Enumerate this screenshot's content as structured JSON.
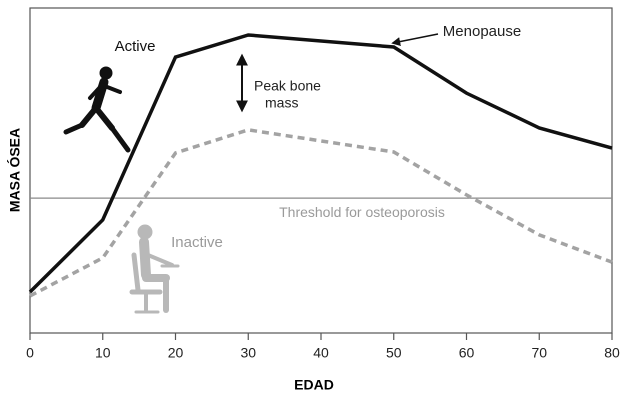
{
  "chart_data": {
    "type": "line",
    "x_label": "EDAD",
    "y_label": "MASA ÓSEA",
    "x": [
      0,
      10,
      20,
      30,
      50,
      60,
      70,
      80
    ],
    "series": [
      {
        "name": "Active",
        "color": "#111111",
        "dash": false,
        "values": [
          12.6,
          34.8,
          84.9,
          91.7,
          88,
          73.8,
          63.1,
          56.9
        ]
      },
      {
        "name": "Inactive",
        "color": "#a3a3a3",
        "dash": true,
        "values": [
          11.4,
          23.1,
          55.4,
          62.5,
          55.7,
          42.5,
          30.2,
          21.8
        ]
      }
    ],
    "threshold": {
      "value": 41.5,
      "label": "Threshold for osteoporosis"
    },
    "annotations": {
      "menopause": "Menopause",
      "peak": [
        "Peak bone",
        "mass"
      ]
    },
    "xlim": [
      0,
      80
    ],
    "xticks": [
      0,
      10,
      20,
      30,
      40,
      50,
      60,
      70,
      80
    ],
    "ylim": [
      0,
      100
    ]
  }
}
